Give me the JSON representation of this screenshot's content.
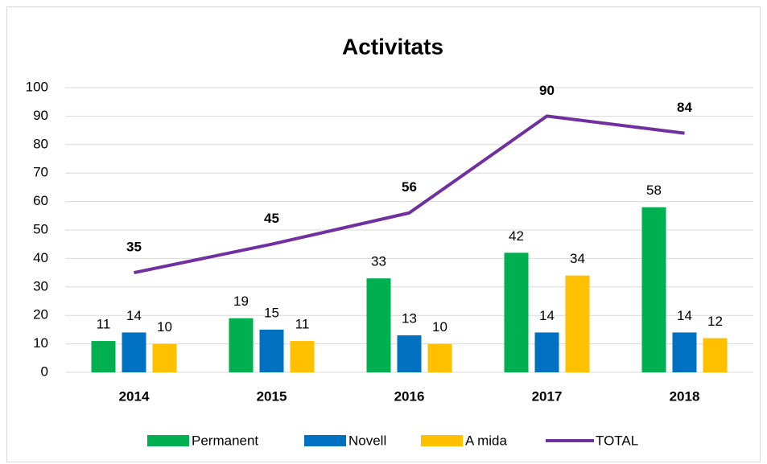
{
  "chart_data": {
    "type": "bar",
    "title": "Activitats",
    "categories": [
      "2014",
      "2015",
      "2016",
      "2017",
      "2018"
    ],
    "series": [
      {
        "name": "Permanent",
        "color": "#00b050",
        "values": [
          11,
          19,
          33,
          42,
          58
        ]
      },
      {
        "name": "Novell",
        "color": "#0070c0",
        "values": [
          14,
          15,
          13,
          14,
          14
        ]
      },
      {
        "name": "A mida",
        "color": "#ffc000",
        "values": [
          10,
          11,
          10,
          34,
          12
        ]
      },
      {
        "name": "TOTAL",
        "color": "#7030a0",
        "type": "line",
        "values": [
          35,
          45,
          56,
          90,
          84
        ]
      }
    ],
    "ylim": [
      0,
      100
    ],
    "yticks": [
      0,
      10,
      20,
      30,
      40,
      50,
      60,
      70,
      80,
      90,
      100
    ],
    "grid": true,
    "legend": "bottom"
  }
}
